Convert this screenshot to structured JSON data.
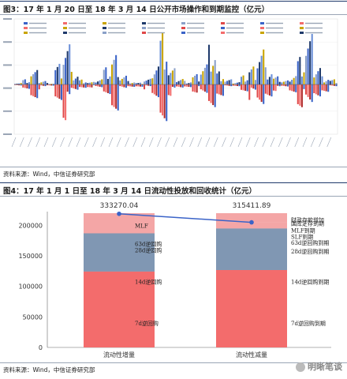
{
  "figure3": {
    "title": "图3：17 年 1 月 20 日至 18 年 3 月 14 日公开市场操作和到期监控（亿元）",
    "source": "资料来源：Wind，中信证券研究部"
  },
  "figure4": {
    "title": "图4：17 年 1 月 1 日至 18 年 3 月 14 日流动性投放和回收统计（亿元）",
    "source": "资料来源：Wind，中信证券研究部"
  },
  "watermark": "明晰笔谈",
  "colors": {
    "salmon": "#f4a6a6",
    "slate": "#8097b3",
    "red": "#f36c6c",
    "line": "#3a63c8",
    "rule": "#1f3a6b"
  },
  "chart_data": [
    {
      "type": "bar",
      "title": "",
      "xlabel": "",
      "ylabel": "",
      "ylim": [
        -3500,
        3500
      ],
      "note": "dense daily operations and maturities bar chart; legend and tick text too small to read",
      "series": [
        {
          "values": [
            120,
            300,
            800,
            250,
            90,
            1200,
            2600,
            700,
            300,
            150,
            400,
            950,
            1800,
            600,
            200,
            100,
            350,
            1500,
            3000,
            900,
            400,
            220,
            600,
            1300,
            2200,
            800,
            300,
            180,
            500,
            1100,
            2400,
            1000,
            450,
            250,
            700,
            1600,
            2800,
            1200,
            500,
            300
          ]
        },
        {
          "values": [
            -150,
            -400,
            -900,
            -300,
            -120,
            -1100,
            -2200,
            -600,
            -250,
            -180,
            -350,
            -800,
            -1600,
            -500,
            -220,
            -150,
            -300,
            -1300,
            -2600,
            -700,
            -350,
            -200,
            -500,
            -1100,
            -1900,
            -700,
            -260,
            -160,
            -450,
            -950,
            -2000,
            -850,
            -400,
            -230,
            -600,
            -1400,
            -2300,
            -1000,
            -450,
            -260
          ]
        }
      ]
    },
    {
      "type": "bar",
      "title": "",
      "xlabel": "",
      "ylabel": "",
      "ylim": [
        0,
        220000
      ],
      "yticks": [
        0,
        50000,
        100000,
        150000,
        200000
      ],
      "categories": [
        "流动性增量",
        "流动性减量"
      ],
      "totals": [
        333270.04,
        315411.89
      ],
      "line_points": [
        219000,
        205000
      ],
      "stacks": [
        {
          "category": "流动性增量",
          "segments": [
            {
              "label": "7d逆回购",
              "start": 0,
              "end": 124500,
              "color": "#f36c6c"
            },
            {
              "label": "14d逆回购",
              "start": 0,
              "end": 0,
              "color": "#f36c6c"
            },
            {
              "label": "28d逆回购",
              "start": 124500,
              "end": 187000,
              "color": "#8097b3"
            },
            {
              "label": "63d逆回购",
              "start": 124500,
              "end": 187000,
              "color": "#8097b3"
            },
            {
              "label": "MLF",
              "start": 187000,
              "end": 220000,
              "color": "#f4a6a6"
            }
          ]
        },
        {
          "category": "流动性减量",
          "segments": [
            {
              "label": "7d逆回购到期",
              "start": 0,
              "end": 127000,
              "color": "#f36c6c"
            },
            {
              "label": "14d逆回购到期",
              "start": 0,
              "end": 0,
              "color": "#f36c6c"
            },
            {
              "label": "28d逆回购到期",
              "start": 127000,
              "end": 195000,
              "color": "#8097b3"
            },
            {
              "label": "63d逆回购到期",
              "start": 127000,
              "end": 195000,
              "color": "#8097b3"
            },
            {
              "label": "SLF到期",
              "start": 127000,
              "end": 195000,
              "color": "#8097b3"
            },
            {
              "label": "MLF到期",
              "start": 195000,
              "end": 205000,
              "color": "#f4a6a6"
            },
            {
              "label": "财政存款增加\n国库定存到期",
              "start": 205000,
              "end": 220000,
              "color": "#f4a6a6"
            }
          ]
        }
      ],
      "annotations": [
        {
          "category": 0,
          "text": "MLF",
          "y": 196000
        },
        {
          "category": 0,
          "text": "63d逆回购",
          "y": 166000
        },
        {
          "category": 0,
          "text": "28d逆回购",
          "y": 156000
        },
        {
          "category": 0,
          "text": "14d逆回购",
          "y": 104000
        },
        {
          "category": 0,
          "text": "7d逆回购",
          "y": 36000
        },
        {
          "category": 1,
          "text": "财政存款增加",
          "y": 206000
        },
        {
          "category": 1,
          "text": "国库定存到期",
          "y": 200000
        },
        {
          "category": 1,
          "text": "MLF到期",
          "y": 188000
        },
        {
          "category": 1,
          "text": "SLF到期",
          "y": 178000
        },
        {
          "category": 1,
          "text": "63d逆回购到期",
          "y": 168000
        },
        {
          "category": 1,
          "text": "28d逆回购到期",
          "y": 154000
        },
        {
          "category": 1,
          "text": "14d逆回购到期",
          "y": 104000
        },
        {
          "category": 1,
          "text": "7d逆回购到期",
          "y": 36000
        }
      ]
    }
  ]
}
